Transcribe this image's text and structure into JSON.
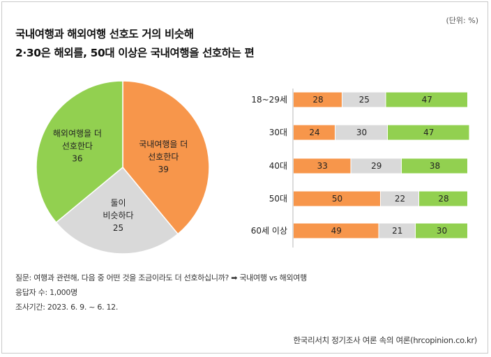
{
  "unit_label": "(단위: %)",
  "title": {
    "line1": "국내여행과 해외여행 선호도 거의 비슷해",
    "line2": "2·30은 해외를, 50대 이상은 국내여행을 선호하는 편"
  },
  "colors": {
    "domestic": "#F7964B",
    "neutral": "#D9D9D9",
    "overseas": "#92D050",
    "axis": "#CFCFCF",
    "stroke": "#ffffff"
  },
  "chart_data": [
    {
      "type": "pie",
      "slices": [
        {
          "key": "domestic",
          "label_lines": [
            "국내여행을 더",
            "선호한다"
          ],
          "value": 39
        },
        {
          "key": "neutral",
          "label_lines": [
            "둘이",
            "비슷하다"
          ],
          "value": 25
        },
        {
          "key": "overseas",
          "label_lines": [
            "해외여행을 더",
            "선호한다"
          ],
          "value": 36
        }
      ],
      "start_angle_deg": 0,
      "direction": "clockwise"
    },
    {
      "type": "bar",
      "orientation": "horizontal",
      "stacked": true,
      "categories": [
        "18~29세",
        "30대",
        "40대",
        "50대",
        "60세 이상"
      ],
      "series": [
        {
          "key": "domestic",
          "name": "국내여행을 더 선호한다",
          "values": [
            28,
            24,
            33,
            50,
            49
          ]
        },
        {
          "key": "neutral",
          "name": "둘이 비슷하다",
          "values": [
            25,
            30,
            29,
            22,
            21
          ]
        },
        {
          "key": "overseas",
          "name": "해외여행을 더 선호한다",
          "values": [
            47,
            47,
            38,
            28,
            30
          ]
        }
      ],
      "xlim": [
        0,
        100
      ]
    }
  ],
  "notes": {
    "question": "질문: 여행과 관련해, 다음 중 어떤 것을 조금이라도 더 선호하십니까? ➡ 국내여행 vs 해외여행",
    "respondents": "응답자 수: 1,000명",
    "period": "조사기간: 2023. 6. 9. ~ 6. 12."
  },
  "source": "한국리서치 정기조사 여론 속의 여론(hrcopinion.co.kr)"
}
